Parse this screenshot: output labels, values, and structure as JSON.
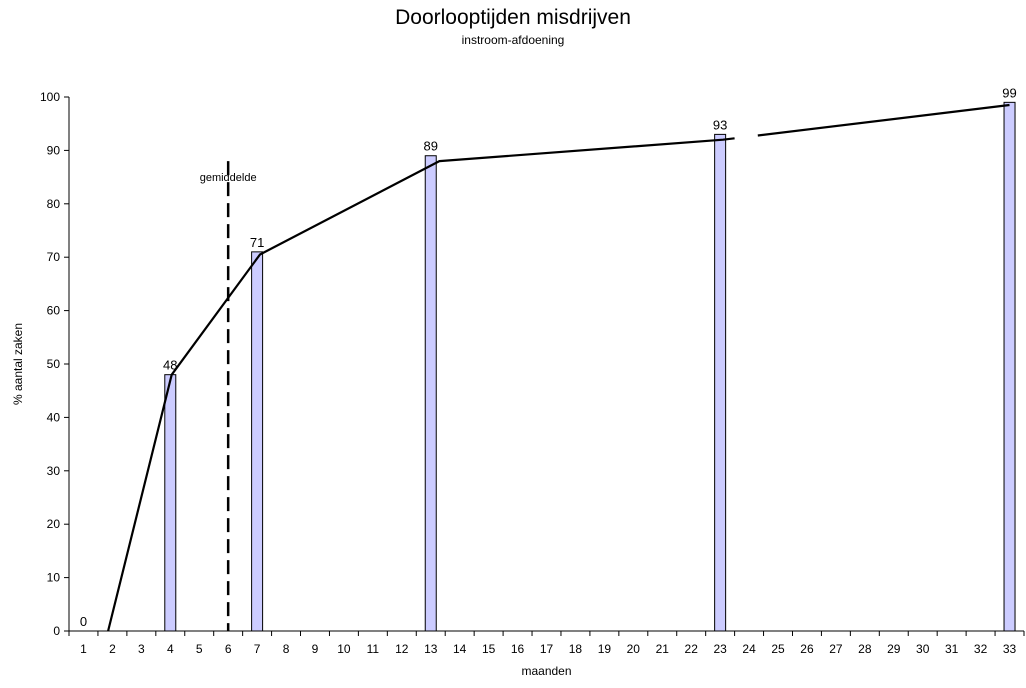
{
  "chart_data": {
    "type": "bar",
    "title": "Doorlooptijden misdrijven",
    "subtitle": "instroom-afdoening",
    "xlabel": "maanden",
    "ylabel": "% aantal zaken",
    "ylim": [
      0,
      100
    ],
    "yticks": [
      0,
      10,
      20,
      30,
      40,
      50,
      60,
      70,
      80,
      90,
      100
    ],
    "categories": [
      "1",
      "2",
      "3",
      "4",
      "5",
      "6",
      "7",
      "8",
      "9",
      "10",
      "11",
      "12",
      "13",
      "14",
      "15",
      "16",
      "17",
      "18",
      "19",
      "20",
      "21",
      "22",
      "23",
      "24",
      "25",
      "26",
      "27",
      "28",
      "29",
      "30",
      "31",
      "32",
      "33"
    ],
    "bars": [
      {
        "x": "1",
        "value": 0,
        "label": "0"
      },
      {
        "x": "4",
        "value": 48,
        "label": "48"
      },
      {
        "x": "7",
        "value": 71,
        "label": "71"
      },
      {
        "x": "13",
        "value": 89,
        "label": "89"
      },
      {
        "x": "23",
        "value": 93,
        "label": "93"
      },
      {
        "x": "33",
        "value": 99,
        "label": "99"
      }
    ],
    "trend_line": {
      "points": [
        [
          1.85,
          0
        ],
        [
          4.05,
          48
        ],
        [
          7.1,
          70.5
        ],
        [
          13.3,
          88
        ],
        [
          23.1,
          92
        ],
        [
          33,
          98.5
        ]
      ],
      "gap": [
        23.5,
        24.3
      ]
    },
    "mean_marker": {
      "x": 6,
      "label": "gemiddelde"
    },
    "bar_color": "#ccccff",
    "grid": false
  }
}
